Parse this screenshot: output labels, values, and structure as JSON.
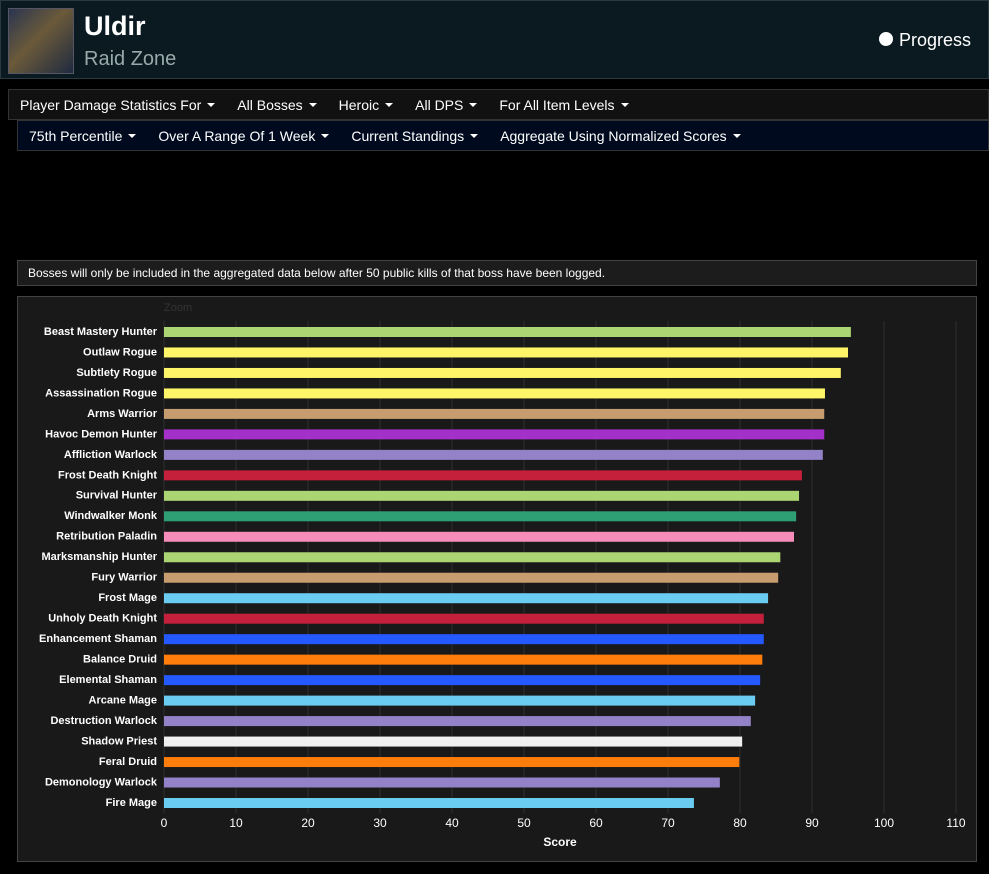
{
  "header": {
    "title": "Uldir",
    "subtitle": "Raid Zone",
    "link": "Progress"
  },
  "filters_row1": [
    "Player Damage Statistics For",
    "All Bosses",
    "Heroic",
    "All DPS",
    "For All Item Levels"
  ],
  "filters_row2": [
    "75th Percentile",
    "Over A Range Of 1 Week",
    "Current Standings",
    "Aggregate Using Normalized Scores"
  ],
  "notice": "Bosses will only be included in the aggregated data below after 50 public kills of that boss have been logged.",
  "chart_data": {
    "type": "bar",
    "orientation": "horizontal",
    "zoom_label": "Zoom",
    "xlabel": "Score",
    "categories": [
      "Beast Mastery Hunter",
      "Outlaw Rogue",
      "Subtlety Rogue",
      "Assassination Rogue",
      "Arms Warrior",
      "Havoc Demon Hunter",
      "Affliction Warlock",
      "Frost Death Knight",
      "Survival Hunter",
      "Windwalker Monk",
      "Retribution Paladin",
      "Marksmanship Hunter",
      "Fury Warrior",
      "Frost Mage",
      "Unholy Death Knight",
      "Enhancement Shaman",
      "Balance Druid",
      "Elemental Shaman",
      "Arcane Mage",
      "Destruction Warlock",
      "Shadow Priest",
      "Feral Druid",
      "Demonology Warlock",
      "Fire Mage"
    ],
    "values": [
      95.4,
      95.0,
      94.0,
      91.8,
      91.7,
      91.7,
      91.5,
      88.6,
      88.2,
      87.8,
      87.5,
      85.6,
      85.3,
      83.9,
      83.3,
      83.3,
      83.1,
      82.8,
      82.1,
      81.5,
      80.3,
      79.9,
      77.2,
      73.6
    ],
    "colors": [
      "#abd473",
      "#fff569",
      "#fff569",
      "#fff569",
      "#c79c6e",
      "#a330c9",
      "#9482c9",
      "#c41f3b",
      "#abd473",
      "#2e9e74",
      "#f58cba",
      "#abd473",
      "#c79c6e",
      "#69ccf0",
      "#c41f3b",
      "#2459ff",
      "#ff7d0a",
      "#2459ff",
      "#69ccf0",
      "#9482c9",
      "#f0f0f0",
      "#ff7d0a",
      "#9482c9",
      "#69ccf0"
    ],
    "xlim": [
      0,
      110
    ],
    "xticks": [
      0,
      10,
      20,
      30,
      40,
      50,
      60,
      70,
      80,
      90,
      100,
      110
    ],
    "grid": true
  }
}
